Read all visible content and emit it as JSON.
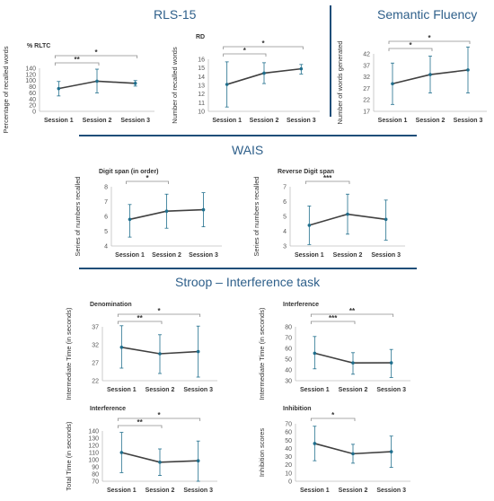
{
  "sections": {
    "rls": "RLS-15",
    "semantic": "Semantic Fluency",
    "wais": "WAIS",
    "stroop": "Stroop – Interference task"
  },
  "colors": {
    "line": "#404040",
    "point": "#1f6e8c",
    "error": "#1f6e8c",
    "bracket": "#8c8c8c",
    "title": "#2e5f8a",
    "divider": "#1f4e79"
  },
  "chart_data": [
    {
      "id": "rls-rltc",
      "type": "line",
      "title": "% RLTC",
      "xlabel": "",
      "ylabel": "Percentage of recalled words",
      "categories": [
        "Session 1",
        "Session 2",
        "Session 3"
      ],
      "values": [
        74,
        98,
        91
      ],
      "err_low": [
        50,
        60,
        82
      ],
      "err_high": [
        97,
        137,
        100
      ],
      "ylim": [
        0,
        140
      ],
      "yticks": [
        0,
        20,
        40,
        60,
        80,
        100,
        120,
        140
      ],
      "brackets": [
        {
          "from": 0,
          "to": 1,
          "label": "**"
        },
        {
          "from": 0,
          "to": 2,
          "label": "*"
        }
      ]
    },
    {
      "id": "rls-rd",
      "type": "line",
      "title": "RD",
      "xlabel": "",
      "ylabel": "Number of recalled words",
      "categories": [
        "Session 1",
        "Session 2",
        "Session 3"
      ],
      "values": [
        13.1,
        14.4,
        14.9
      ],
      "err_low": [
        10.5,
        13.2,
        14.3
      ],
      "err_high": [
        15.7,
        15.6,
        15.4
      ],
      "ylim": [
        10,
        16
      ],
      "yticks": [
        10,
        11,
        12,
        13,
        14,
        15,
        16
      ],
      "brackets": [
        {
          "from": 0,
          "to": 1,
          "label": "*"
        },
        {
          "from": 0,
          "to": 2,
          "label": "*"
        }
      ]
    },
    {
      "id": "semantic",
      "type": "line",
      "title": "",
      "xlabel": "",
      "ylabel": "Number of words generated",
      "categories": [
        "Session 1",
        "Session 2",
        "Session 3"
      ],
      "values": [
        29,
        33,
        35
      ],
      "err_low": [
        20,
        25,
        25
      ],
      "err_high": [
        38,
        41,
        45
      ],
      "ylim": [
        17,
        42
      ],
      "yticks": [
        17,
        22,
        27,
        32,
        37,
        42
      ],
      "brackets": [
        {
          "from": 0,
          "to": 1,
          "label": "*"
        },
        {
          "from": 0,
          "to": 2,
          "label": "*"
        }
      ]
    },
    {
      "id": "digit-span",
      "type": "line",
      "title": "Digit span (in order)",
      "xlabel": "",
      "ylabel": "Series of numbers recalled",
      "categories": [
        "Session 1",
        "Session 2",
        "Session 3"
      ],
      "values": [
        5.8,
        6.35,
        6.45
      ],
      "err_low": [
        4.6,
        5.2,
        5.3
      ],
      "err_high": [
        6.8,
        7.5,
        7.6
      ],
      "ylim": [
        4,
        8
      ],
      "yticks": [
        4,
        5,
        6,
        7,
        8
      ],
      "brackets": [
        {
          "from": 0,
          "to": 1,
          "label": "*"
        }
      ]
    },
    {
      "id": "reverse-digit-span",
      "type": "line",
      "title": "Reverse Digit span",
      "xlabel": "",
      "ylabel": "Series of numbers recalled",
      "categories": [
        "Session 1",
        "Session 2",
        "Session 3"
      ],
      "values": [
        4.4,
        5.15,
        4.8
      ],
      "err_low": [
        3.1,
        3.8,
        3.4
      ],
      "err_high": [
        5.7,
        6.5,
        6.1
      ],
      "ylim": [
        3,
        7
      ],
      "yticks": [
        3,
        4,
        5,
        6,
        7
      ],
      "brackets": [
        {
          "from": 0,
          "to": 1,
          "label": "***"
        }
      ]
    },
    {
      "id": "stroop-denomination",
      "type": "line",
      "title": "Denomination",
      "xlabel": "",
      "ylabel": "Intermediate Time (in seconds)",
      "categories": [
        "Session 1",
        "Session 2",
        "Session 3"
      ],
      "values": [
        31.3,
        29.5,
        30.1
      ],
      "err_low": [
        25.5,
        24,
        23
      ],
      "err_high": [
        37.3,
        34.8,
        37.2
      ],
      "ylim": [
        22,
        37
      ],
      "yticks": [
        22,
        27,
        32,
        37
      ],
      "brackets": [
        {
          "from": 0,
          "to": 1,
          "label": "**"
        },
        {
          "from": 0,
          "to": 2,
          "label": "*"
        }
      ]
    },
    {
      "id": "stroop-interference",
      "type": "line",
      "title": "Interference",
      "xlabel": "",
      "ylabel": "Intermediate Time (in seconds)",
      "categories": [
        "Session 1",
        "Session 2",
        "Session 3"
      ],
      "values": [
        55.5,
        46.5,
        46.6
      ],
      "err_low": [
        41,
        36,
        33
      ],
      "err_high": [
        71,
        56,
        59
      ],
      "ylim": [
        30,
        80
      ],
      "yticks": [
        30,
        40,
        50,
        60,
        70,
        80
      ],
      "brackets": [
        {
          "from": 0,
          "to": 1,
          "label": "***"
        },
        {
          "from": 0,
          "to": 2,
          "label": "**"
        }
      ]
    },
    {
      "id": "stroop-total",
      "type": "line",
      "title": "Interference",
      "xlabel": "",
      "ylabel": "Total Time (in seconds)",
      "categories": [
        "Session 1",
        "Session 2",
        "Session 3"
      ],
      "values": [
        110,
        96.5,
        98.5
      ],
      "err_low": [
        82,
        78,
        70
      ],
      "err_high": [
        138,
        115,
        126
      ],
      "ylim": [
        70,
        140
      ],
      "yticks": [
        70,
        80,
        90,
        100,
        110,
        120,
        130,
        140
      ],
      "brackets": [
        {
          "from": 0,
          "to": 1,
          "label": "**"
        },
        {
          "from": 0,
          "to": 2,
          "label": "*"
        }
      ]
    },
    {
      "id": "stroop-inhibition",
      "type": "line",
      "title": "Inhibition",
      "xlabel": "",
      "ylabel": "Inhibition scores",
      "categories": [
        "Session 1",
        "Session 2",
        "Session 3"
      ],
      "values": [
        46,
        33.5,
        36
      ],
      "err_low": [
        25,
        22,
        17
      ],
      "err_high": [
        67,
        45,
        55
      ],
      "ylim": [
        0,
        70
      ],
      "yticks": [
        0,
        10,
        20,
        30,
        40,
        50,
        60,
        70
      ],
      "brackets": [
        {
          "from": 0,
          "to": 1,
          "label": "*"
        }
      ]
    }
  ]
}
